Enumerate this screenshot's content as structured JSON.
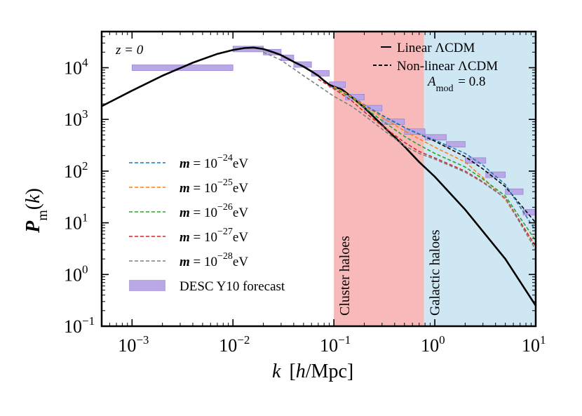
{
  "chart_data": {
    "type": "line",
    "title": "",
    "xlabel": "k  [h/Mpc]",
    "ylabel": "P_m(k)",
    "x_scale": "log",
    "y_scale": "log",
    "xlim": [
      0.0005,
      10
    ],
    "ylim": [
      0.1,
      50000
    ],
    "x_ticks": [
      0.001,
      0.01,
      0.1,
      1,
      10
    ],
    "x_tick_labels": [
      {
        "base": "10",
        "exp": "−3"
      },
      {
        "base": "10",
        "exp": "−2"
      },
      {
        "base": "10",
        "exp": "−1"
      },
      {
        "base": "10",
        "exp": "0"
      },
      {
        "base": "10",
        "exp": "1"
      }
    ],
    "y_ticks": [
      0.1,
      1,
      10,
      100,
      1000,
      10000
    ],
    "y_tick_labels": [
      {
        "base": "10",
        "exp": "−1"
      },
      {
        "base": "10",
        "exp": "0"
      },
      {
        "base": "10",
        "exp": "1"
      },
      {
        "base": "10",
        "exp": "2"
      },
      {
        "base": "10",
        "exp": "3"
      },
      {
        "base": "10",
        "exp": "4"
      }
    ],
    "annotation_redshift": "z = 0",
    "annotation_amod": "A_mod = 0.8",
    "regions": [
      {
        "name": "Cluster haloes",
        "k_range": [
          0.1,
          0.78
        ],
        "color": "#f7b9b9"
      },
      {
        "name": "Galactic haloes",
        "k_range": [
          0.78,
          10
        ],
        "color": "#cfe7f3"
      }
    ],
    "series": [
      {
        "name": "Linear ΛCDM",
        "style": "solid",
        "color": "#000000",
        "x": [
          0.0005,
          0.001,
          0.002,
          0.004,
          0.007,
          0.01,
          0.013,
          0.016,
          0.02,
          0.025,
          0.03,
          0.04,
          0.05,
          0.06,
          0.07,
          0.08,
          0.09,
          0.1,
          0.12,
          0.15,
          0.2,
          0.3,
          0.5,
          0.7,
          1,
          2,
          5,
          10
        ],
        "y": [
          1800,
          3600,
          7000,
          12500,
          18500,
          22000,
          24000,
          24500,
          23000,
          20000,
          17500,
          13000,
          10500,
          8500,
          7000,
          5600,
          4700,
          4300,
          3800,
          2700,
          1700,
          780,
          300,
          150,
          78,
          18,
          2.0,
          0.25
        ]
      },
      {
        "name": "Non-linear ΛCDM",
        "style": "dashed",
        "color": "#000000",
        "x": [
          0.1,
          0.15,
          0.2,
          0.3,
          0.5,
          0.7,
          1,
          2,
          3,
          5,
          10
        ],
        "y": [
          4300,
          2800,
          1900,
          1200,
          700,
          520,
          380,
          190,
          110,
          50,
          10
        ]
      },
      {
        "name": "m = 10^−24 eV",
        "style": "dashed",
        "color": "#1f77b4",
        "x": [
          0.1,
          0.15,
          0.2,
          0.3,
          0.5,
          0.7,
          1,
          2,
          3,
          5,
          10
        ],
        "y": [
          4300,
          2800,
          1900,
          1200,
          700,
          520,
          400,
          220,
          130,
          55,
          7
        ]
      },
      {
        "name": "m = 10^−25 eV",
        "style": "dashed",
        "color": "#ff7f0e",
        "x": [
          0.1,
          0.15,
          0.2,
          0.3,
          0.5,
          0.7,
          1,
          2,
          3,
          5,
          10
        ],
        "y": [
          4300,
          2750,
          1850,
          1100,
          600,
          420,
          290,
          150,
          75,
          28,
          3.5
        ]
      },
      {
        "name": "m = 10^−26 eV",
        "style": "dashed",
        "color": "#2ca02c",
        "x": [
          0.1,
          0.15,
          0.2,
          0.3,
          0.5,
          0.7,
          1,
          2,
          3,
          5,
          10
        ],
        "y": [
          4100,
          2600,
          1700,
          950,
          470,
          320,
          220,
          120,
          70,
          33,
          4.5
        ]
      },
      {
        "name": "m = 10^−27 eV",
        "style": "dashed",
        "color": "#d62728",
        "x": [
          0.07,
          0.1,
          0.15,
          0.2,
          0.3,
          0.5,
          0.7,
          1,
          2,
          3,
          5,
          10
        ],
        "y": [
          6000,
          3900,
          2300,
          1400,
          750,
          360,
          240,
          180,
          100,
          62,
          30,
          3.5
        ]
      },
      {
        "name": "m = 10^−28 eV",
        "style": "dashed",
        "color": "#7f7f7f",
        "x": [
          0.02,
          0.03,
          0.04,
          0.05,
          0.07,
          0.1,
          0.15,
          0.2,
          0.3,
          0.5,
          0.7,
          1,
          2,
          3,
          5,
          10
        ],
        "y": [
          20000,
          14000,
          9500,
          7000,
          4500,
          2800,
          1800,
          1200,
          650,
          310,
          220,
          170,
          95,
          60,
          30,
          3.0
        ]
      }
    ],
    "desc_forecast": {
      "name": "DESC Y10 forecast",
      "color": "#b9a7e6",
      "bins": [
        {
          "k": [
            0.001,
            0.01
          ],
          "p": 10000
        },
        {
          "k": [
            0.01,
            0.02
          ],
          "p": 23000
        },
        {
          "k": [
            0.02,
            0.03
          ],
          "p": 20000
        },
        {
          "k": [
            0.03,
            0.04
          ],
          "p": 15500
        },
        {
          "k": [
            0.04,
            0.06
          ],
          "p": 11500
        },
        {
          "k": [
            0.06,
            0.09
          ],
          "p": 7800
        },
        {
          "k": [
            0.09,
            0.13
          ],
          "p": 4700
        },
        {
          "k": [
            0.13,
            0.2
          ],
          "p": 2700
        },
        {
          "k": [
            0.2,
            0.3
          ],
          "p": 1650
        },
        {
          "k": [
            0.3,
            0.5
          ],
          "p": 900
        },
        {
          "k": [
            0.5,
            0.8
          ],
          "p": 580
        },
        {
          "k": [
            0.8,
            1.3
          ],
          "p": 450
        },
        {
          "k": [
            1.3,
            2.0
          ],
          "p": 330
        },
        {
          "k": [
            2.0,
            3.2
          ],
          "p": 160
        },
        {
          "k": [
            3.2,
            5.0
          ],
          "p": 85
        },
        {
          "k": [
            5.0,
            7.5
          ],
          "p": 40
        },
        {
          "k": [
            7.5,
            10
          ],
          "p": 16
        }
      ]
    }
  },
  "legend_top": [
    {
      "style": "solid",
      "label": "Linear ΛCDM"
    },
    {
      "style": "dashed",
      "label": "Non-linear ΛCDM"
    }
  ],
  "legend_left": [
    {
      "color": "#1f77b4",
      "label": "m = 10",
      "exp": "−24",
      "unit": "eV"
    },
    {
      "color": "#ff7f0e",
      "label": "m = 10",
      "exp": "−25",
      "unit": "eV"
    },
    {
      "color": "#2ca02c",
      "label": "m = 10",
      "exp": "−26",
      "unit": "eV"
    },
    {
      "color": "#d62728",
      "label": "m = 10",
      "exp": "−27",
      "unit": "eV"
    },
    {
      "color": "#7f7f7f",
      "label": "m = 10",
      "exp": "−28",
      "unit": "eV"
    }
  ],
  "legend_desc_label": "DESC Y10 forecast"
}
